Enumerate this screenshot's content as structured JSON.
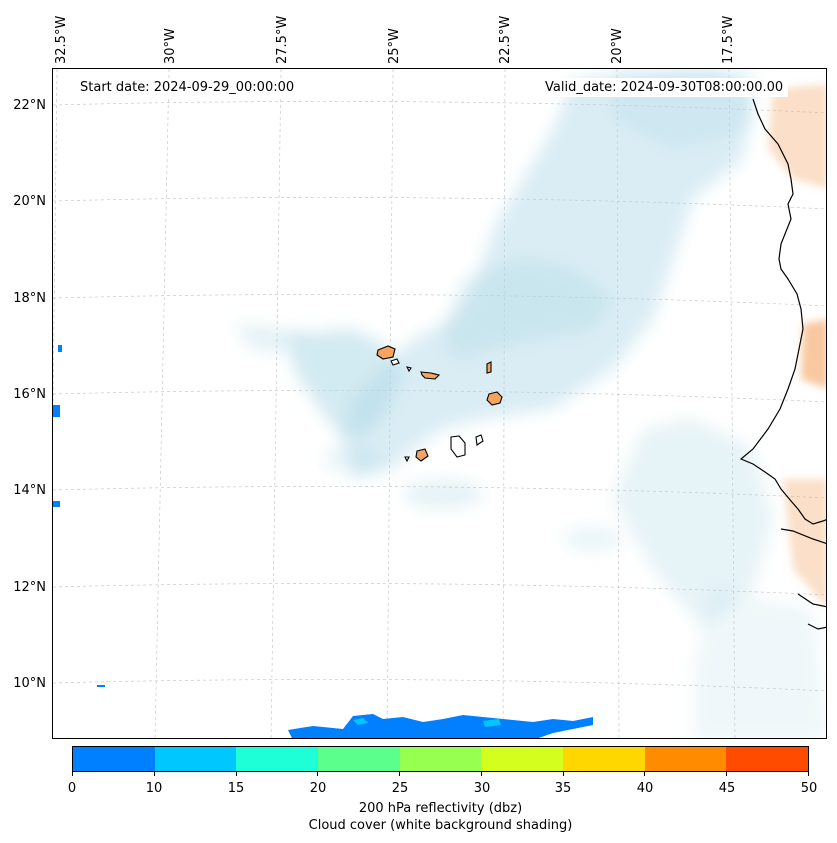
{
  "map": {
    "start_label": "Start date: 2024-09-29_00:00:00",
    "valid_label": "Valid_date: 2024-09-30T08:00:00.00",
    "lon_ticks": [
      "32.5°W",
      "30°W",
      "27.5°W",
      "25°W",
      "22.5°W",
      "20°W",
      "17.5°W"
    ],
    "lat_ticks": [
      "22°N",
      "20°N",
      "18°N",
      "16°N",
      "14°N",
      "12°N",
      "10°N"
    ]
  },
  "colorbar": {
    "colors": [
      "#0080ff",
      "#00c8ff",
      "#1effd7",
      "#5aff8c",
      "#96ff50",
      "#d4ff1e",
      "#ffd700",
      "#ff8c00",
      "#ff4b00"
    ],
    "ticks": [
      "0",
      "10",
      "15",
      "20",
      "25",
      "30",
      "35",
      "40",
      "45",
      "50"
    ],
    "label": "200 hPa reflectivity (dbz)",
    "sublabel": "Cloud cover (white background shading)"
  },
  "colors": {
    "cloud": "#add8e6",
    "land": "#f4a460",
    "reflectivity": "#0080ff"
  }
}
